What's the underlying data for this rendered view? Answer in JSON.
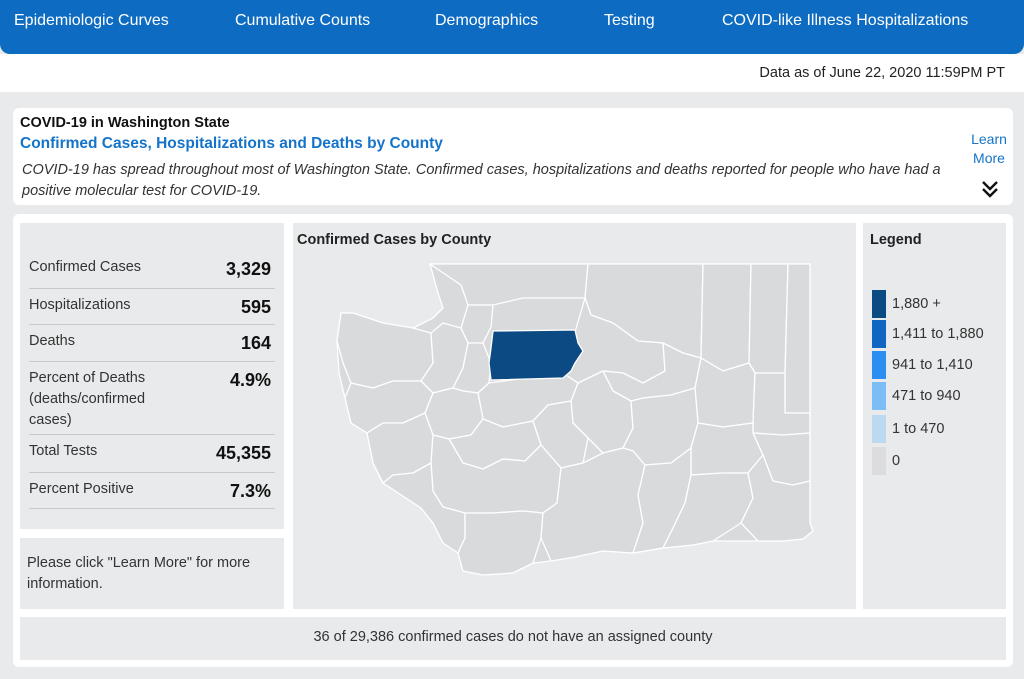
{
  "nav": {
    "tabs": [
      {
        "label": "Epidemiologic Curves"
      },
      {
        "label": "Cumulative Counts"
      },
      {
        "label": "Demographics"
      },
      {
        "label": "Testing"
      },
      {
        "label": "COVID-like Illness Hospitalizations"
      }
    ]
  },
  "data_as_of": "Data as of June 22, 2020 11:59PM PT",
  "info": {
    "title": "COVID-19 in Washington State",
    "subtitle": "Confirmed Cases, Hospitalizations and Deaths by County",
    "description": "COVID-19 has spread throughout most of Washington State. Confirmed cases, hospitalizations and deaths reported for people who have had a positive molecular test for COVID-19.",
    "learn_more": "Learn More"
  },
  "stats": [
    {
      "label": "Confirmed Cases",
      "value": "3,329"
    },
    {
      "label": "Hospitalizations",
      "value": "595"
    },
    {
      "label": "Deaths",
      "value": "164"
    },
    {
      "label": "Percent of Deaths (deaths/confirmed cases)",
      "value": "4.9%"
    },
    {
      "label": "Total Tests",
      "value": "45,355"
    },
    {
      "label": "Percent Positive",
      "value": "7.3%"
    }
  ],
  "note": "Please click \"Learn More\" for more information.",
  "map": {
    "title": "Confirmed Cases by County",
    "highlight_color": "#0b4a82",
    "base_color": "#d9dadc"
  },
  "legend": {
    "title": "Legend",
    "items": [
      {
        "label": "1,880 +",
        "color": "#0b4a82"
      },
      {
        "label": "1,411 to 1,880",
        "color": "#1166c2"
      },
      {
        "label": "941 to 1,410",
        "color": "#2c8ef0"
      },
      {
        "label": "471 to 940",
        "color": "#7dbdf5"
      },
      {
        "label": "1 to 470",
        "color": "#bcd9f0"
      },
      {
        "label": "0",
        "color": "#dcdcdf"
      }
    ]
  },
  "footnote": "36 of 29,386 confirmed cases do not have an assigned county"
}
